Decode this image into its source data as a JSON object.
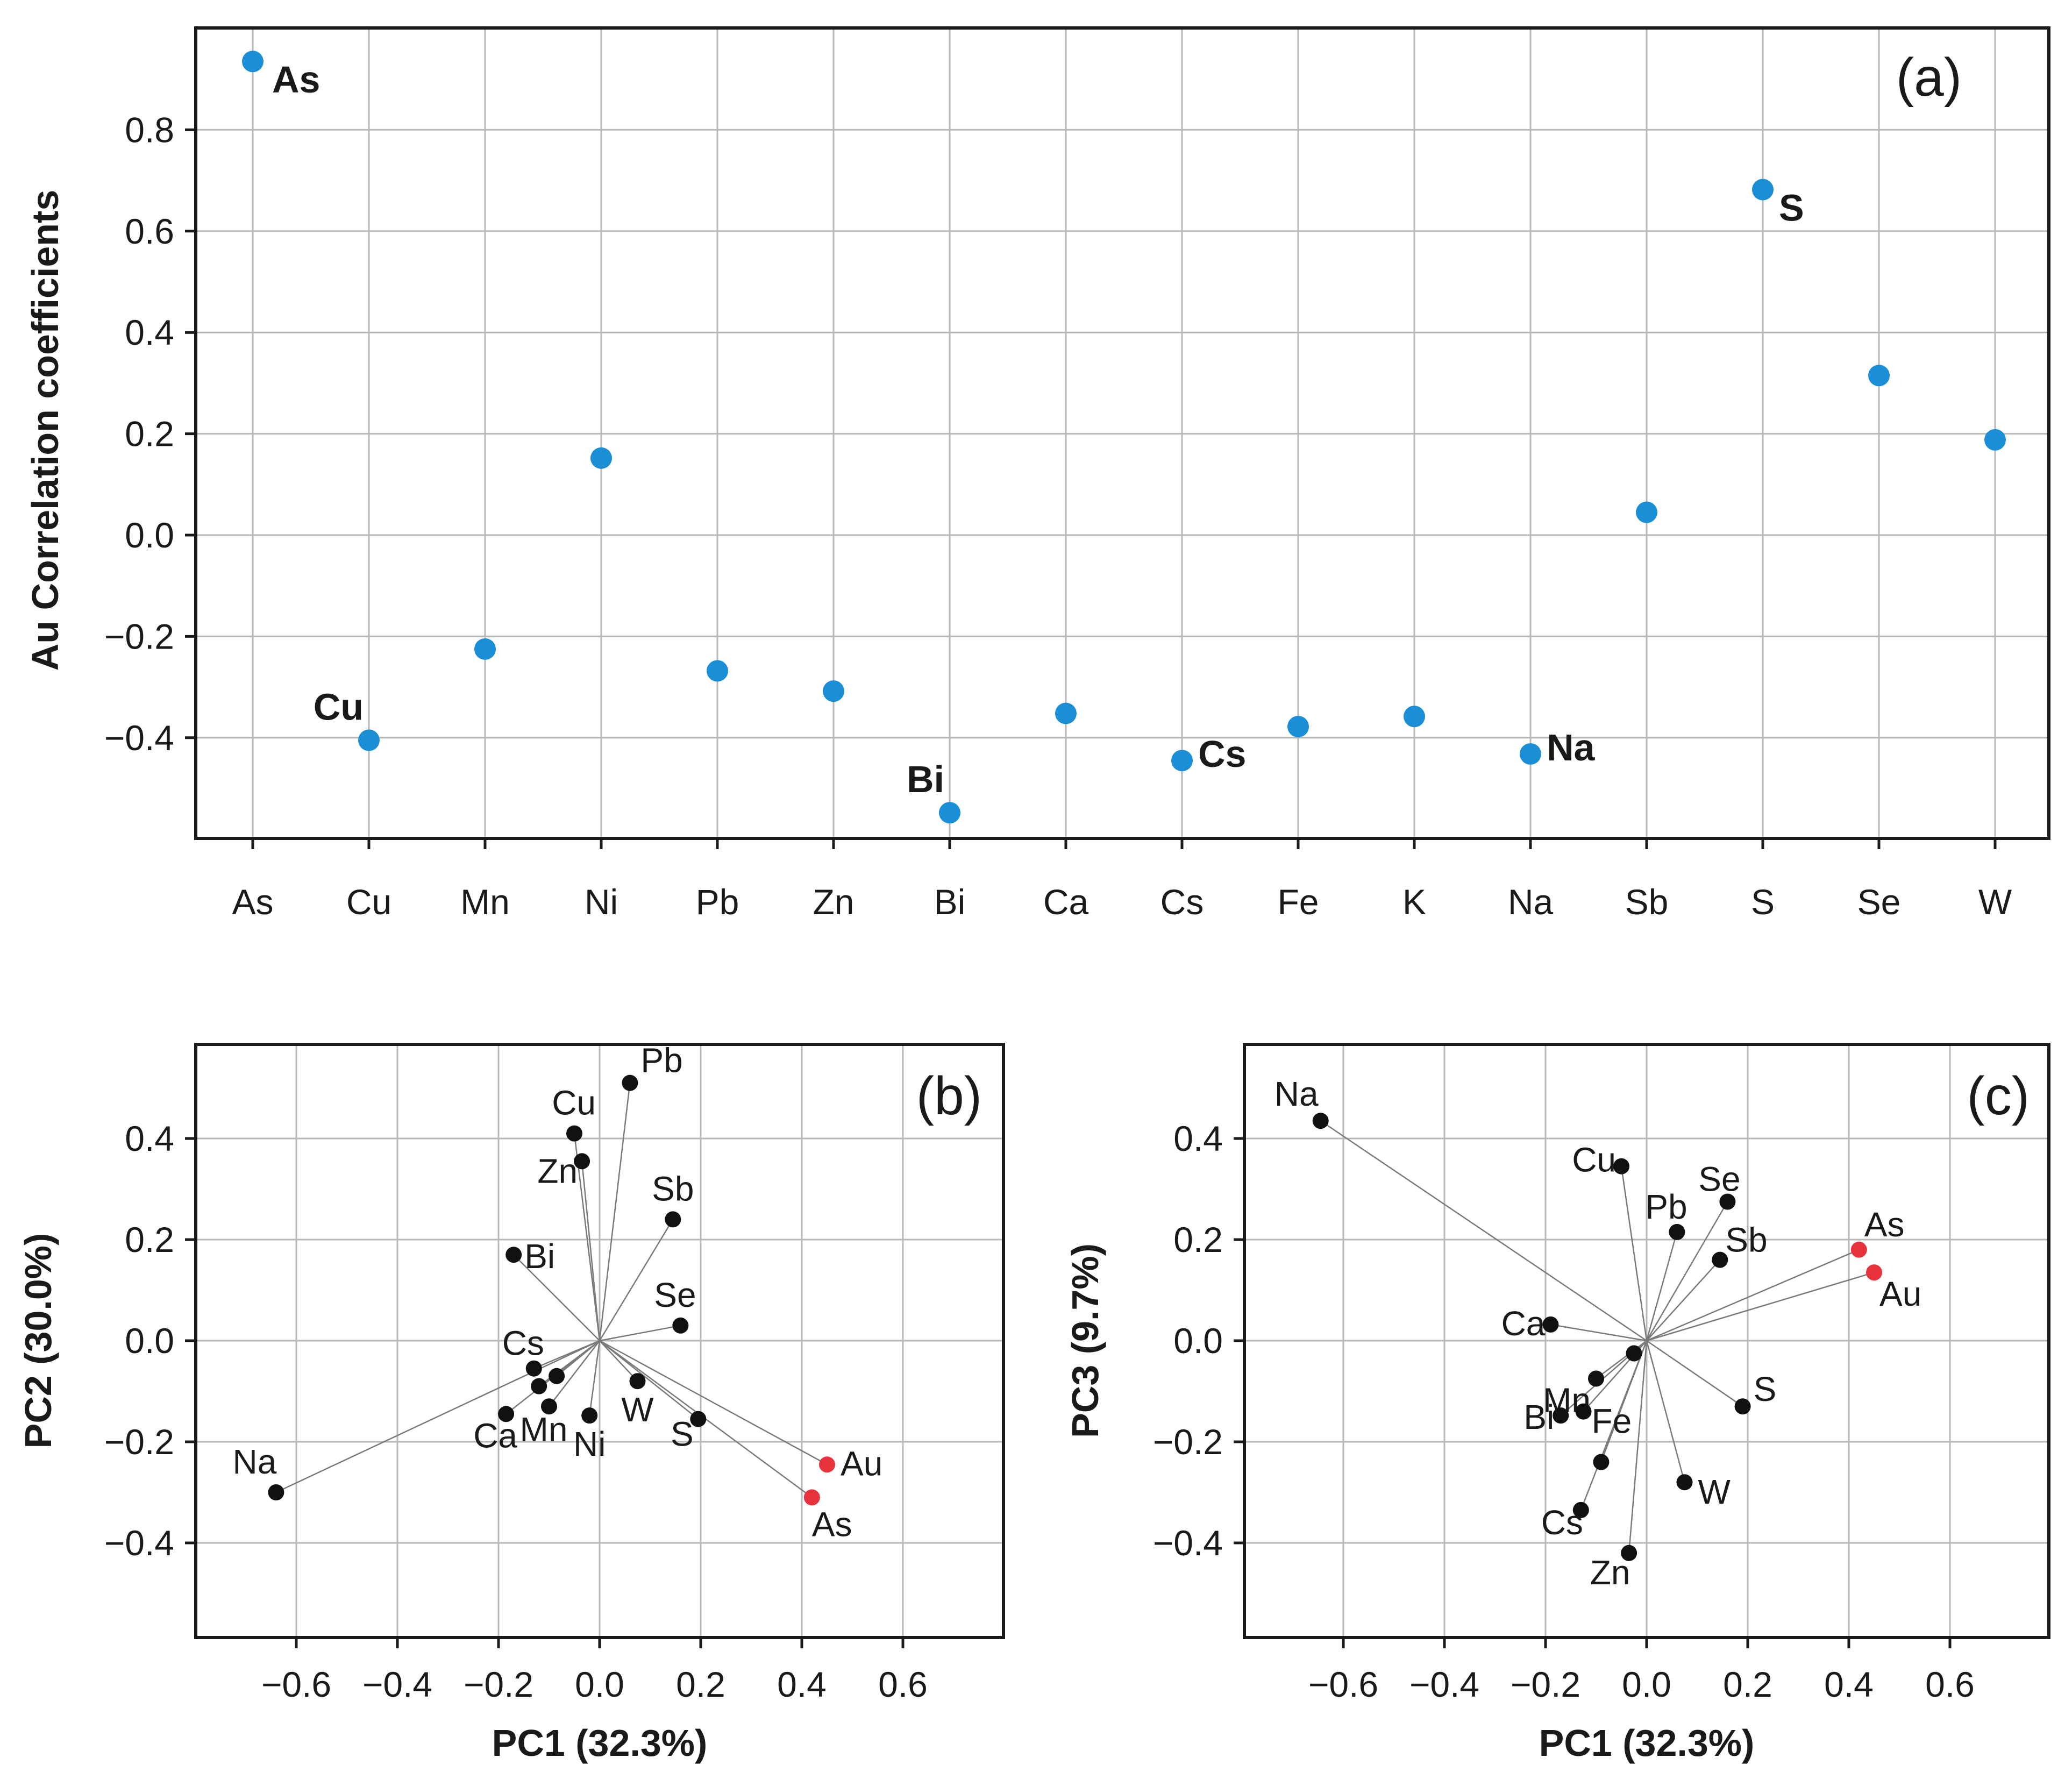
{
  "chart_data": [
    {
      "panel": "(a)",
      "type": "scatter",
      "ylabel": "Au Correlation coefficients",
      "xlabel": "",
      "categories": [
        "As",
        "Cu",
        "Mn",
        "Ni",
        "Pb",
        "Zn",
        "Bi",
        "Ca",
        "Cs",
        "Fe",
        "K",
        "Na",
        "Sb",
        "S",
        "Se",
        "W"
      ],
      "values": [
        0.935,
        -0.405,
        -0.225,
        0.152,
        -0.268,
        -0.308,
        -0.548,
        -0.352,
        -0.445,
        -0.378,
        -0.358,
        -0.432,
        0.045,
        0.682,
        0.315,
        0.188
      ],
      "annotated": [
        "As",
        "Cu",
        "Bi",
        "Cs",
        "Na",
        "S"
      ],
      "yticks": [
        -0.4,
        -0.2,
        0.0,
        0.2,
        0.4,
        0.6,
        0.8
      ],
      "ytick_labels": [
        "−0.4",
        "−0.2",
        "0.0",
        "0.2",
        "0.4",
        "0.6",
        "0.8"
      ],
      "ylim": [
        -0.6,
        1.0
      ],
      "color": "#1a8fd6",
      "grid": true
    },
    {
      "panel": "(b)",
      "type": "biplot",
      "xlabel": "PC1 (32.3%)",
      "ylabel": "PC2 (30.0%)",
      "xlim": [
        -0.8,
        0.8
      ],
      "ylim": [
        -0.59,
        0.59
      ],
      "xticks": [
        -0.6,
        -0.4,
        -0.2,
        0.0,
        0.2,
        0.4,
        0.6
      ],
      "xtick_labels": [
        "−0.6",
        "−0.4",
        "−0.2",
        "0.0",
        "0.2",
        "0.4",
        "0.6"
      ],
      "yticks": [
        -0.4,
        -0.2,
        0.0,
        0.2,
        0.4
      ],
      "ytick_labels": [
        "−0.4",
        "−0.2",
        "0.0",
        "0.2",
        "0.4"
      ],
      "points": [
        {
          "label": "Pb",
          "x": 0.06,
          "y": 0.51,
          "highlight": false
        },
        {
          "label": "Cu",
          "x": -0.05,
          "y": 0.41,
          "highlight": false
        },
        {
          "label": "Zn",
          "x": -0.035,
          "y": 0.355,
          "highlight": false
        },
        {
          "label": "Sb",
          "x": 0.145,
          "y": 0.24,
          "highlight": false
        },
        {
          "label": "Bi",
          "x": -0.17,
          "y": 0.17,
          "highlight": false
        },
        {
          "label": "Se",
          "x": 0.16,
          "y": 0.03,
          "highlight": false
        },
        {
          "label": "Cs",
          "x": -0.13,
          "y": -0.055,
          "highlight": false
        },
        {
          "label": "",
          "x": -0.085,
          "y": -0.07,
          "highlight": false
        },
        {
          "label": "",
          "x": -0.12,
          "y": -0.09,
          "highlight": false
        },
        {
          "label": "W",
          "x": 0.075,
          "y": -0.08,
          "highlight": false
        },
        {
          "label": "Mn",
          "x": -0.1,
          "y": -0.13,
          "highlight": false
        },
        {
          "label": "Ca",
          "x": -0.185,
          "y": -0.145,
          "highlight": false
        },
        {
          "label": "Ni",
          "x": -0.02,
          "y": -0.148,
          "highlight": false
        },
        {
          "label": "S",
          "x": 0.195,
          "y": -0.155,
          "highlight": false
        },
        {
          "label": "Au",
          "x": 0.45,
          "y": -0.245,
          "highlight": true
        },
        {
          "label": "As",
          "x": 0.42,
          "y": -0.31,
          "highlight": true
        },
        {
          "label": "Na",
          "x": -0.64,
          "y": -0.3,
          "highlight": false
        }
      ],
      "grid": true
    },
    {
      "panel": "(c)",
      "type": "biplot",
      "xlabel": "PC1 (32.3%)",
      "ylabel": "PC3 (9.7%)",
      "xlim": [
        -0.8,
        0.8
      ],
      "ylim": [
        -0.59,
        0.59
      ],
      "xticks": [
        -0.6,
        -0.4,
        -0.2,
        0.0,
        0.2,
        0.4,
        0.6
      ],
      "xtick_labels": [
        "−0.6",
        "−0.4",
        "−0.2",
        "0.0",
        "0.2",
        "0.4",
        "0.6"
      ],
      "yticks": [
        -0.4,
        -0.2,
        0.0,
        0.2,
        0.4
      ],
      "ytick_labels": [
        "−0.4",
        "−0.2",
        "0.0",
        "0.2",
        "0.4"
      ],
      "points": [
        {
          "label": "Na",
          "x": -0.645,
          "y": 0.435,
          "highlight": false
        },
        {
          "label": "Cu",
          "x": -0.05,
          "y": 0.345,
          "highlight": false
        },
        {
          "label": "Se",
          "x": 0.16,
          "y": 0.275,
          "highlight": false
        },
        {
          "label": "Pb",
          "x": 0.06,
          "y": 0.215,
          "highlight": false
        },
        {
          "label": "Sb",
          "x": 0.145,
          "y": 0.16,
          "highlight": false
        },
        {
          "label": "As",
          "x": 0.42,
          "y": 0.18,
          "highlight": true
        },
        {
          "label": "Au",
          "x": 0.45,
          "y": 0.135,
          "highlight": true
        },
        {
          "label": "Ca",
          "x": -0.19,
          "y": 0.032,
          "highlight": false
        },
        {
          "label": "",
          "x": -0.025,
          "y": -0.025,
          "highlight": false
        },
        {
          "label": "Mn",
          "x": -0.1,
          "y": -0.075,
          "highlight": false
        },
        {
          "label": "S",
          "x": 0.19,
          "y": -0.13,
          "highlight": false
        },
        {
          "label": "Bi",
          "x": -0.17,
          "y": -0.148,
          "highlight": false
        },
        {
          "label": "Fe",
          "x": -0.125,
          "y": -0.14,
          "highlight": false
        },
        {
          "label": "",
          "x": -0.09,
          "y": -0.24,
          "highlight": false
        },
        {
          "label": "W",
          "x": 0.075,
          "y": -0.28,
          "highlight": false
        },
        {
          "label": "Cs",
          "x": -0.13,
          "y": -0.335,
          "highlight": false
        },
        {
          "label": "Zn",
          "x": -0.035,
          "y": -0.42,
          "highlight": false
        }
      ],
      "grid": true
    }
  ]
}
